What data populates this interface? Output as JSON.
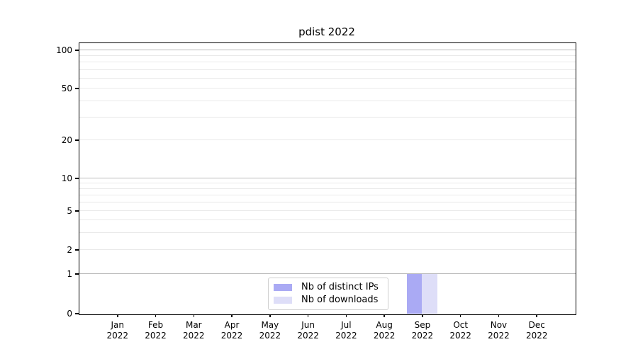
{
  "chart_data": {
    "type": "bar",
    "title": "pdist 2022",
    "x_year": "2022",
    "categories": [
      "Jan",
      "Feb",
      "Mar",
      "Apr",
      "May",
      "Jun",
      "Jul",
      "Aug",
      "Sep",
      "Oct",
      "Nov",
      "Dec"
    ],
    "series": [
      {
        "name": "Nb of distinct IPs",
        "color": "#aaaaf4",
        "values": [
          0,
          0,
          0,
          0,
          0,
          0,
          0,
          0,
          1,
          0,
          0,
          0
        ]
      },
      {
        "name": "Nb of downloads",
        "color": "#dedef8",
        "values": [
          0,
          0,
          0,
          0,
          0,
          0,
          0,
          0,
          1,
          0,
          0,
          0
        ]
      }
    ],
    "yticks": [
      0,
      1,
      2,
      5,
      10,
      20,
      50,
      100
    ],
    "ylim": [
      0,
      110
    ],
    "yscale": "symlog",
    "xlabel": "",
    "ylabel": "",
    "grid": true,
    "legend_position": "lower center"
  }
}
